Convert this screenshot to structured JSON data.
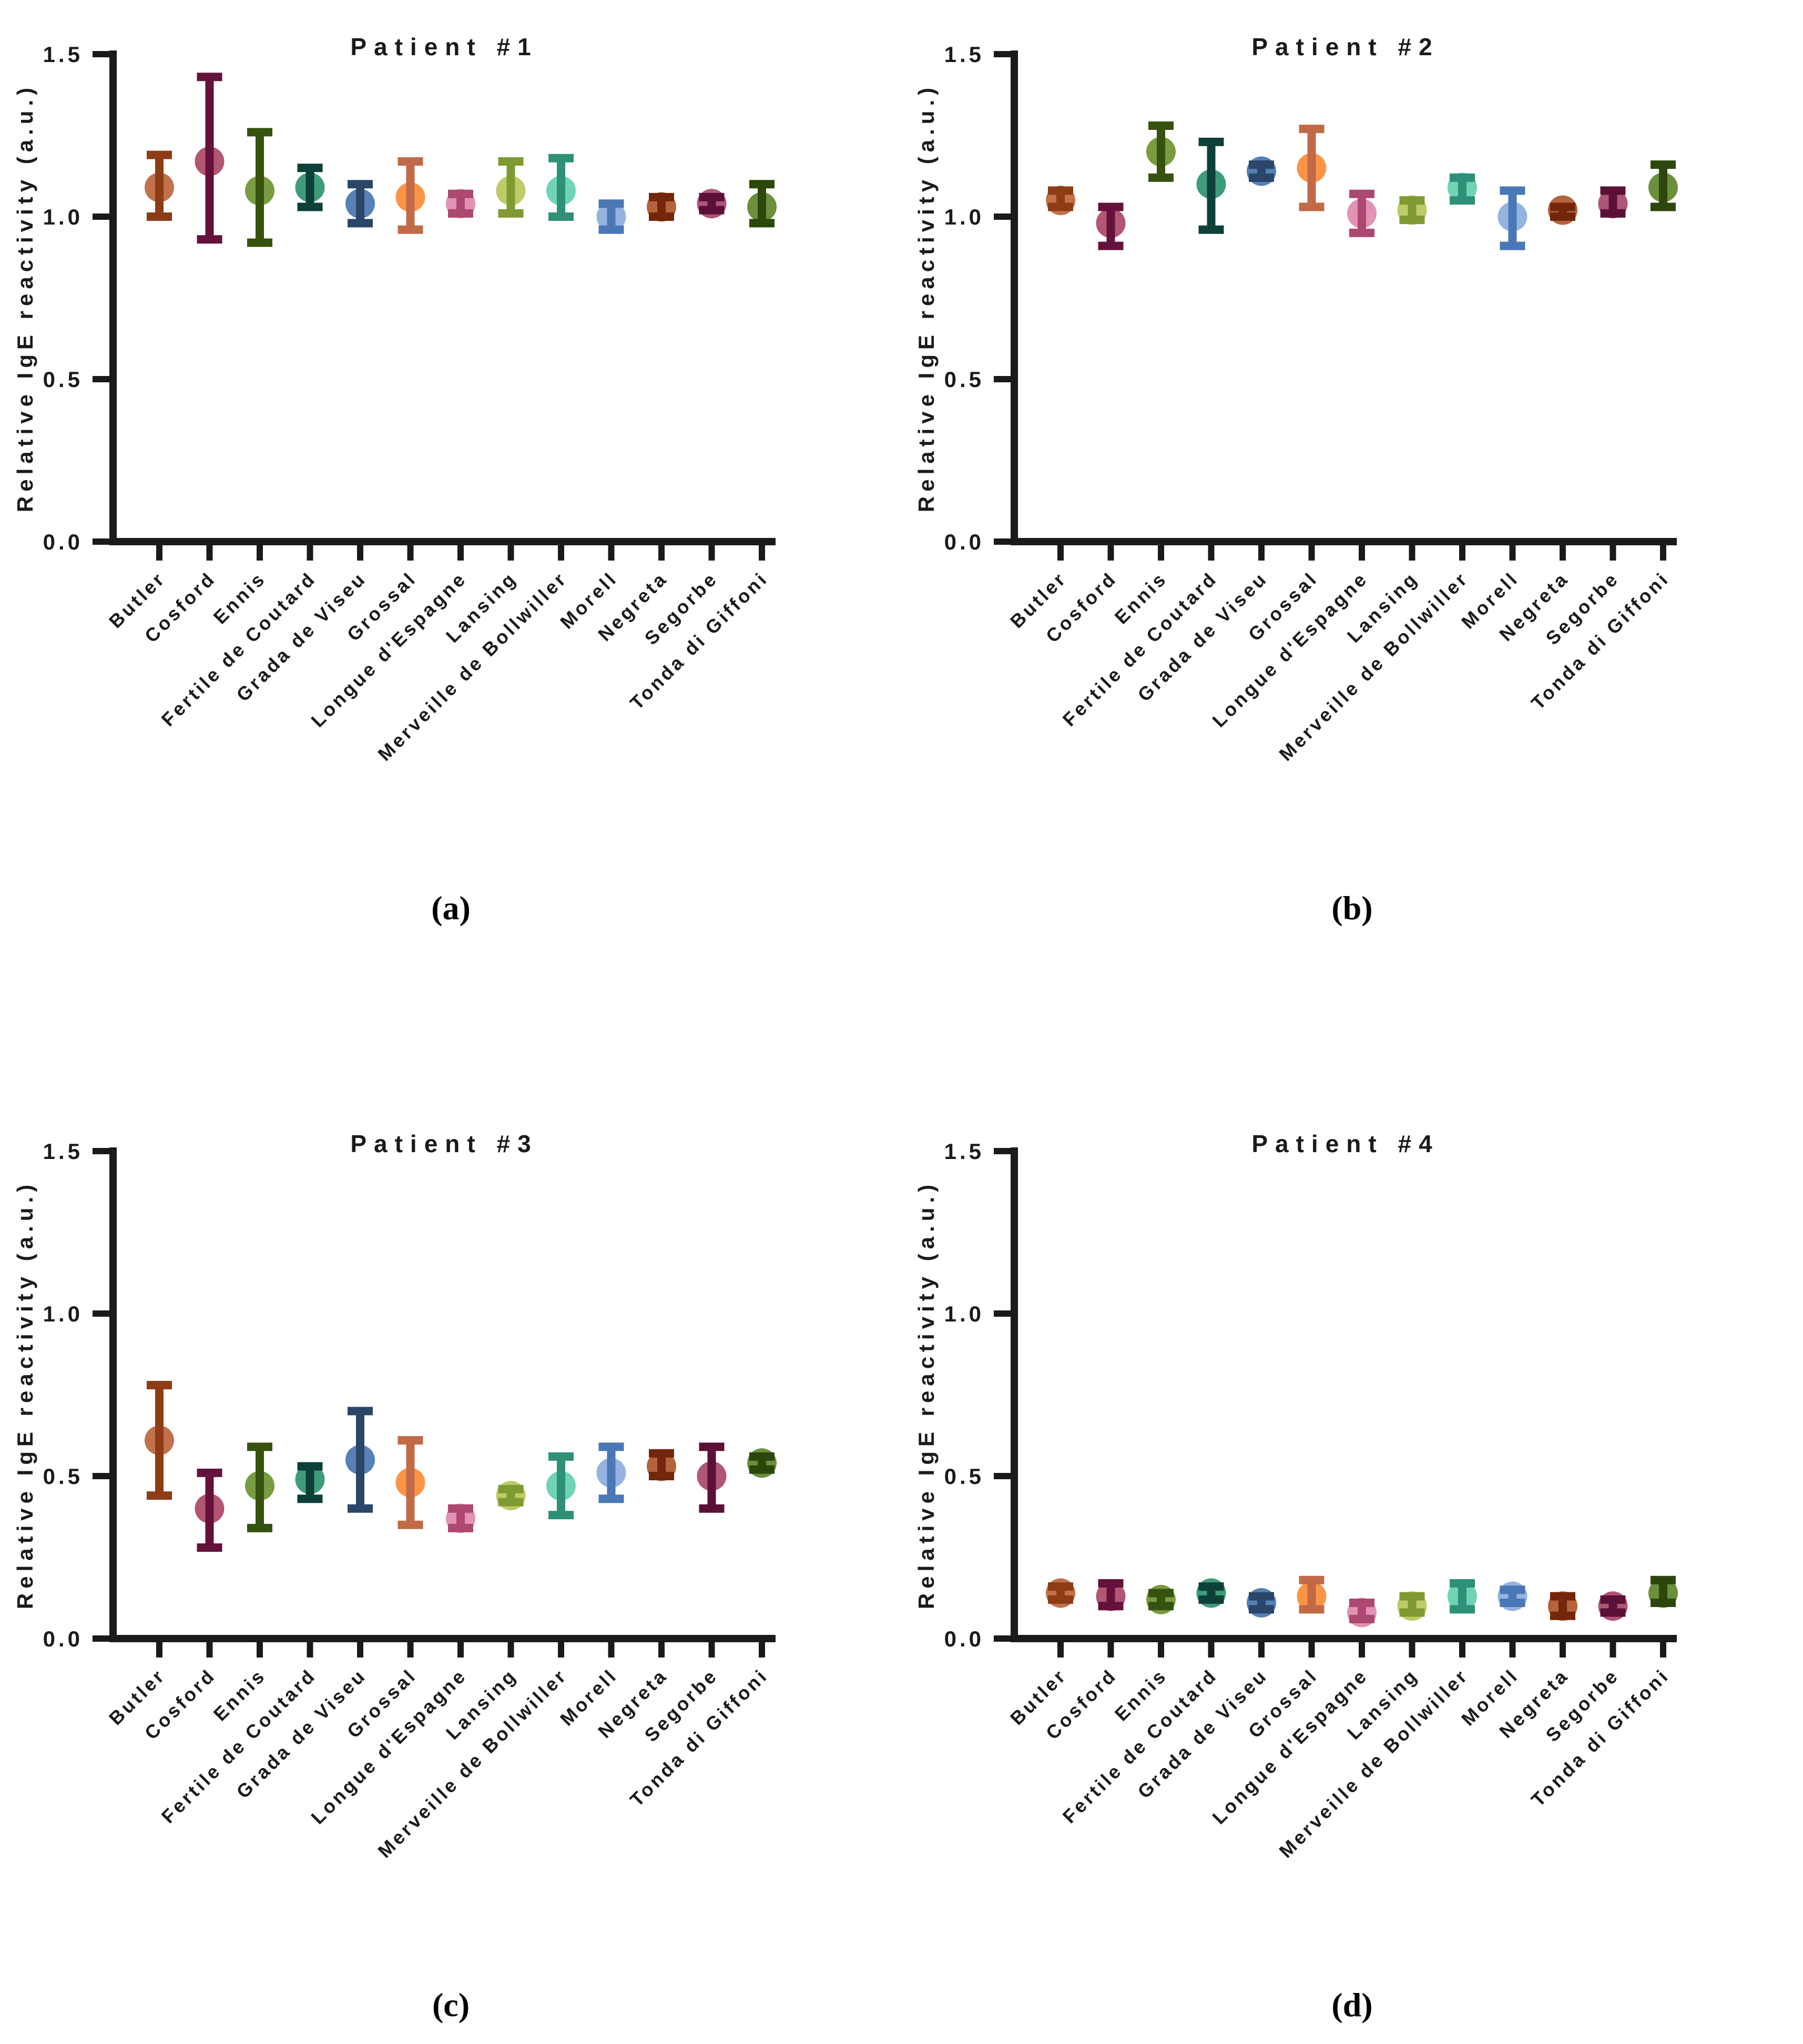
{
  "figure": {
    "background": "#ffffff",
    "axis_color": "#1a1a1a",
    "ylabel": "Relative IgE reactivity (a.u.)",
    "yticks": [
      "0.0",
      "0.5",
      "1.0",
      "1.5"
    ],
    "ylim": [
      0,
      1.5
    ],
    "grid": false,
    "legend": "none"
  },
  "categories": [
    "Butler",
    "Cosford",
    "Ennis",
    "Fertile de Coutard",
    "Grada de Viseu",
    "Grossal",
    "Longue d'Espagne",
    "Lansing",
    "Merveille de Bollwiller",
    "Morell",
    "Negreta",
    "Segorbe",
    "Tonda di Giffoni"
  ],
  "palette": [
    {
      "category": "Butler",
      "marker": "#C2714C",
      "bar": "#8E3C16"
    },
    {
      "category": "Cosford",
      "marker": "#B25672",
      "bar": "#64113C"
    },
    {
      "category": "Ennis",
      "marker": "#7A9C41",
      "bar": "#37520E"
    },
    {
      "category": "Fertile de Coutard",
      "marker": "#3F9C7B",
      "bar": "#0D4038"
    },
    {
      "category": "Grada de Viseu",
      "marker": "#5581B5",
      "bar": "#2A4669"
    },
    {
      "category": "Grossal",
      "marker": "#FB9545",
      "bar": "#C26A47"
    },
    {
      "category": "Longue d'Espagne",
      "marker": "#E292B4",
      "bar": "#AD4870"
    },
    {
      "category": "Lansing",
      "marker": "#BDCC69",
      "bar": "#7F9A30"
    },
    {
      "category": "Merveille de Bollwiller",
      "marker": "#6FD4B5",
      "bar": "#2E9077"
    },
    {
      "category": "Morell",
      "marker": "#95B3DF",
      "bar": "#4A77B5"
    },
    {
      "category": "Negreta",
      "marker": "#B5633C",
      "bar": "#732609"
    },
    {
      "category": "Segorbe",
      "marker": "#AF5578",
      "bar": "#5B1038"
    },
    {
      "category": "Tonda di Giffoni",
      "marker": "#6C8F3D",
      "bar": "#2C470B"
    }
  ],
  "chart_data": [
    {
      "type": "scatter",
      "title": "Patient #1",
      "panel_label": "(a)",
      "xlabel": "",
      "ylabel": "Relative IgE reactivity (a.u.)",
      "ylim": [
        0,
        1.5
      ],
      "yticks": [
        "0.0",
        "0.5",
        "1.0",
        "1.5"
      ],
      "grid": false,
      "categories": [
        "Butler",
        "Cosford",
        "Ennis",
        "Fertile de Coutard",
        "Grada de Viseu",
        "Grossal",
        "Longue d'Espagne",
        "Lansing",
        "Merveille de Bollwiller",
        "Morell",
        "Negreta",
        "Segorbe",
        "Tonda di Giffoni"
      ],
      "points": [
        {
          "category": "Butler",
          "mean": 1.09,
          "lo": 1.0,
          "hi": 1.19
        },
        {
          "category": "Cosford",
          "mean": 1.17,
          "lo": 0.93,
          "hi": 1.43
        },
        {
          "category": "Ennis",
          "mean": 1.08,
          "lo": 0.92,
          "hi": 1.26
        },
        {
          "category": "Fertile de Coutard",
          "mean": 1.09,
          "lo": 1.03,
          "hi": 1.15
        },
        {
          "category": "Grada de Viseu",
          "mean": 1.04,
          "lo": 0.98,
          "hi": 1.1
        },
        {
          "category": "Grossal",
          "mean": 1.06,
          "lo": 0.96,
          "hi": 1.17
        },
        {
          "category": "Longue d'Espagne",
          "mean": 1.04,
          "lo": 1.01,
          "hi": 1.07
        },
        {
          "category": "Lansing",
          "mean": 1.08,
          "lo": 1.01,
          "hi": 1.17
        },
        {
          "category": "Merveille de Bollwiller",
          "mean": 1.08,
          "lo": 1.0,
          "hi": 1.18
        },
        {
          "category": "Morell",
          "mean": 1.0,
          "lo": 0.96,
          "hi": 1.04
        },
        {
          "category": "Negreta",
          "mean": 1.03,
          "lo": 1.0,
          "hi": 1.06
        },
        {
          "category": "Segorbe",
          "mean": 1.04,
          "lo": 1.02,
          "hi": 1.06
        },
        {
          "category": "Tonda di Giffoni",
          "mean": 1.03,
          "lo": 0.98,
          "hi": 1.1
        }
      ]
    },
    {
      "type": "scatter",
      "title": "Patient #2",
      "panel_label": "(b)",
      "xlabel": "",
      "ylabel": "Relative IgE reactivity (a.u.)",
      "ylim": [
        0,
        1.5
      ],
      "yticks": [
        "0.0",
        "0.5",
        "1.0",
        "1.5"
      ],
      "grid": false,
      "categories": [
        "Butler",
        "Cosford",
        "Ennis",
        "Fertile de Coutard",
        "Grada de Viseu",
        "Grossal",
        "Longue d'Espagne",
        "Lansing",
        "Merveille de Bollwiller",
        "Morell",
        "Negreta",
        "Segorbe",
        "Tonda di Giffoni"
      ],
      "points": [
        {
          "category": "Butler",
          "mean": 1.05,
          "lo": 1.03,
          "hi": 1.08
        },
        {
          "category": "Cosford",
          "mean": 0.98,
          "lo": 0.91,
          "hi": 1.03
        },
        {
          "category": "Ennis",
          "mean": 1.2,
          "lo": 1.12,
          "hi": 1.28
        },
        {
          "category": "Fertile de Coutard",
          "mean": 1.1,
          "lo": 0.96,
          "hi": 1.23
        },
        {
          "category": "Grada de Viseu",
          "mean": 1.14,
          "lo": 1.12,
          "hi": 1.16
        },
        {
          "category": "Grossal",
          "mean": 1.15,
          "lo": 1.03,
          "hi": 1.27
        },
        {
          "category": "Longue d'Espagne",
          "mean": 1.01,
          "lo": 0.95,
          "hi": 1.07
        },
        {
          "category": "Lansing",
          "mean": 1.02,
          "lo": 0.99,
          "hi": 1.05
        },
        {
          "category": "Merveille de Bollwiller",
          "mean": 1.09,
          "lo": 1.05,
          "hi": 1.12
        },
        {
          "category": "Morell",
          "mean": 1.0,
          "lo": 0.91,
          "hi": 1.08
        },
        {
          "category": "Negreta",
          "mean": 1.02,
          "lo": 1.0,
          "hi": 1.03
        },
        {
          "category": "Segorbe",
          "mean": 1.04,
          "lo": 1.01,
          "hi": 1.08
        },
        {
          "category": "Tonda di Giffoni",
          "mean": 1.09,
          "lo": 1.03,
          "hi": 1.16
        }
      ]
    },
    {
      "type": "scatter",
      "title": "Patient #3",
      "panel_label": "(c)",
      "xlabel": "",
      "ylabel": "Relative IgE reactivity (a.u.)",
      "ylim": [
        0,
        1.5
      ],
      "yticks": [
        "0.0",
        "0.5",
        "1.0",
        "1.5"
      ],
      "grid": false,
      "categories": [
        "Butler",
        "Cosford",
        "Ennis",
        "Fertile de Coutard",
        "Grada de Viseu",
        "Grossal",
        "Longue d'Espagne",
        "Lansing",
        "Merveille de Bollwiller",
        "Morell",
        "Negreta",
        "Segorbe",
        "Tonda di Giffoni"
      ],
      "points": [
        {
          "category": "Butler",
          "mean": 0.61,
          "lo": 0.44,
          "hi": 0.78
        },
        {
          "category": "Cosford",
          "mean": 0.4,
          "lo": 0.28,
          "hi": 0.51
        },
        {
          "category": "Ennis",
          "mean": 0.47,
          "lo": 0.34,
          "hi": 0.59
        },
        {
          "category": "Fertile de Coutard",
          "mean": 0.49,
          "lo": 0.43,
          "hi": 0.53
        },
        {
          "category": "Grada de Viseu",
          "mean": 0.55,
          "lo": 0.4,
          "hi": 0.7
        },
        {
          "category": "Grossal",
          "mean": 0.48,
          "lo": 0.35,
          "hi": 0.61
        },
        {
          "category": "Longue d'Espagne",
          "mean": 0.37,
          "lo": 0.34,
          "hi": 0.4
        },
        {
          "category": "Lansing",
          "mean": 0.44,
          "lo": 0.42,
          "hi": 0.46
        },
        {
          "category": "Merveille de Bollwiller",
          "mean": 0.47,
          "lo": 0.38,
          "hi": 0.56
        },
        {
          "category": "Morell",
          "mean": 0.51,
          "lo": 0.43,
          "hi": 0.59
        },
        {
          "category": "Negreta",
          "mean": 0.53,
          "lo": 0.5,
          "hi": 0.57
        },
        {
          "category": "Segorbe",
          "mean": 0.5,
          "lo": 0.4,
          "hi": 0.59
        },
        {
          "category": "Tonda di Giffoni",
          "mean": 0.54,
          "lo": 0.52,
          "hi": 0.56
        }
      ]
    },
    {
      "type": "scatter",
      "title": "Patient #4",
      "panel_label": "(d)",
      "xlabel": "",
      "ylabel": "Relative IgE reactivity (a.u.)",
      "ylim": [
        0,
        1.5
      ],
      "yticks": [
        "0.0",
        "0.5",
        "1.0",
        "1.5"
      ],
      "grid": false,
      "categories": [
        "Butler",
        "Cosford",
        "Ennis",
        "Fertile de Coutard",
        "Grada de Viseu",
        "Grossal",
        "Longue d'Espagne",
        "Lansing",
        "Merveille de Bollwiller",
        "Morell",
        "Negreta",
        "Segorbe",
        "Tonda di Giffoni"
      ],
      "points": [
        {
          "category": "Butler",
          "mean": 0.14,
          "lo": 0.12,
          "hi": 0.16
        },
        {
          "category": "Cosford",
          "mean": 0.13,
          "lo": 0.1,
          "hi": 0.17
        },
        {
          "category": "Ennis",
          "mean": 0.12,
          "lo": 0.1,
          "hi": 0.14
        },
        {
          "category": "Fertile de Coutard",
          "mean": 0.14,
          "lo": 0.12,
          "hi": 0.16
        },
        {
          "category": "Grada de Viseu",
          "mean": 0.11,
          "lo": 0.09,
          "hi": 0.13
        },
        {
          "category": "Grossal",
          "mean": 0.13,
          "lo": 0.09,
          "hi": 0.18
        },
        {
          "category": "Longue d'Espagne",
          "mean": 0.08,
          "lo": 0.06,
          "hi": 0.11
        },
        {
          "category": "Lansing",
          "mean": 0.1,
          "lo": 0.08,
          "hi": 0.13
        },
        {
          "category": "Merveille de Bollwiller",
          "mean": 0.13,
          "lo": 0.09,
          "hi": 0.17
        },
        {
          "category": "Morell",
          "mean": 0.13,
          "lo": 0.11,
          "hi": 0.15
        },
        {
          "category": "Negreta",
          "mean": 0.1,
          "lo": 0.07,
          "hi": 0.13
        },
        {
          "category": "Segorbe",
          "mean": 0.1,
          "lo": 0.08,
          "hi": 0.12
        },
        {
          "category": "Tonda di Giffoni",
          "mean": 0.14,
          "lo": 0.11,
          "hi": 0.18
        }
      ]
    }
  ]
}
